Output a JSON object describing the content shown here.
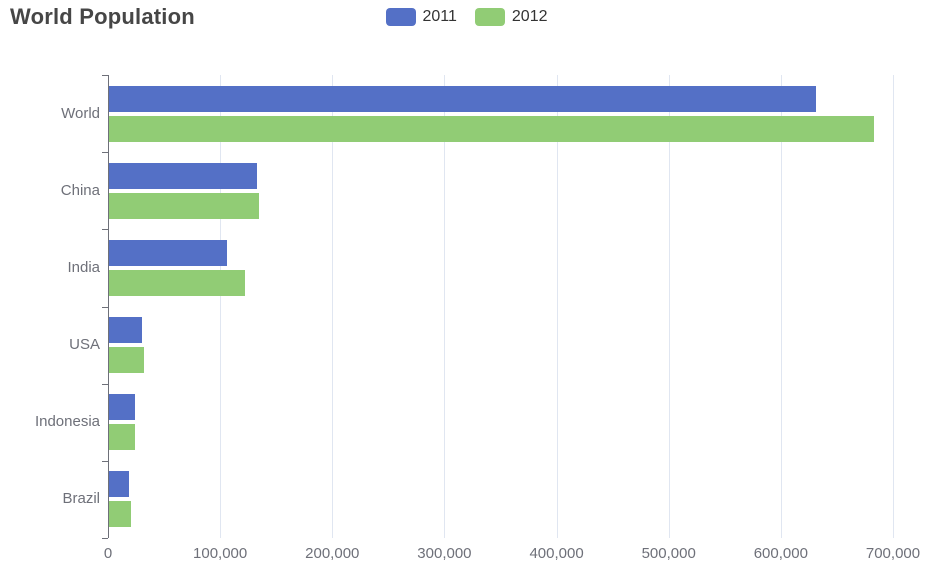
{
  "chart_data": {
    "type": "bar",
    "orientation": "horizontal",
    "title": "World Population",
    "categories": [
      "World",
      "China",
      "India",
      "USA",
      "Indonesia",
      "Brazil"
    ],
    "series": [
      {
        "name": "2011",
        "color": "#5470C6",
        "values": [
          630230,
          131744,
          104970,
          29034,
          23489,
          18203
        ]
      },
      {
        "name": "2012",
        "color": "#91CC75",
        "values": [
          681807,
          134141,
          121594,
          31000,
          23438,
          19325
        ]
      }
    ],
    "x_axis": {
      "min": 0,
      "max": 700000,
      "tick_interval": 100000,
      "tick_labels": [
        "0",
        "100,000",
        "200,000",
        "300,000",
        "400,000",
        "500,000",
        "600,000",
        "700,000"
      ]
    },
    "grid": true,
    "legend_position": "top-center",
    "colors": {
      "grid_line": "#E0E6F1",
      "axis_line": "#6E7079",
      "axis_label": "#6E7079",
      "title": "#464646",
      "legend_text": "#333333",
      "background": "#FFFFFF"
    }
  }
}
